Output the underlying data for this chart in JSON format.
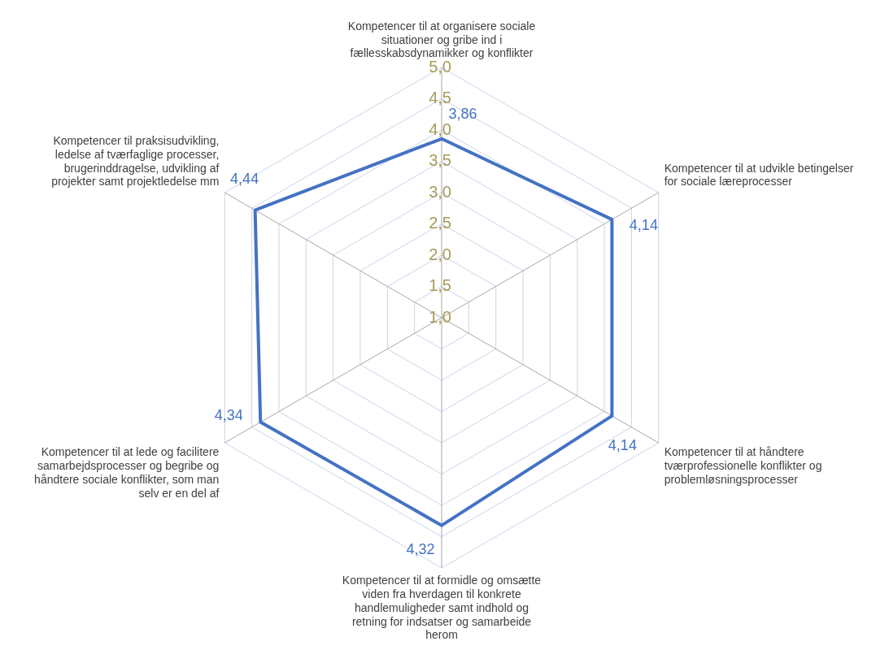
{
  "chart_data": {
    "type": "radar",
    "categories": [
      "Kompetencer til at organisere sociale situationer og gribe ind i fællesskabsdynamikker og konflikter",
      "Kompetencer til at udvikle betingelser for sociale læreprocesser",
      "Kompetencer til at håndtere tværprofessionelle konflikter og problemløsningsprocesser",
      "Kompetencer til at formidle og omsætte viden fra hverdagen til konkrete handlemuligheder samt indhold og retning for indsatser og samarbeide herom",
      "Kompetencer til at lede og facilitere samarbejdsprocesser og begribe og håndtere sociale konflikter, som man selv er en del af",
      "Kompetencer til praksisudvikling, ledelse af tværfaglige processer, brugerinddragelse, udvikling af projekter samt projektledelse mm"
    ],
    "series": [
      {
        "color": "#4472c4",
        "values": [
          3.86,
          4.14,
          4.14,
          4.32,
          4.34,
          4.44
        ],
        "value_labels": [
          "3,86",
          "4,14",
          "4,14",
          "4,32",
          "4,34",
          "4,44"
        ]
      }
    ],
    "ylim": [
      1,
      5
    ],
    "yticks": [
      {
        "value": 1,
        "label": "1,0"
      },
      {
        "value": 1.5,
        "label": "1,5"
      },
      {
        "value": 2,
        "label": "2,0"
      },
      {
        "value": 2.5,
        "label": "2,5"
      },
      {
        "value": 3,
        "label": "3,0"
      },
      {
        "value": 3.5,
        "label": "3,5"
      },
      {
        "value": 4,
        "label": "4,0"
      },
      {
        "value": 4.5,
        "label": "4,5"
      },
      {
        "value": 5,
        "label": "5,0"
      }
    ],
    "grid": true,
    "legend": false,
    "marker": "none",
    "line_style": "solid"
  }
}
